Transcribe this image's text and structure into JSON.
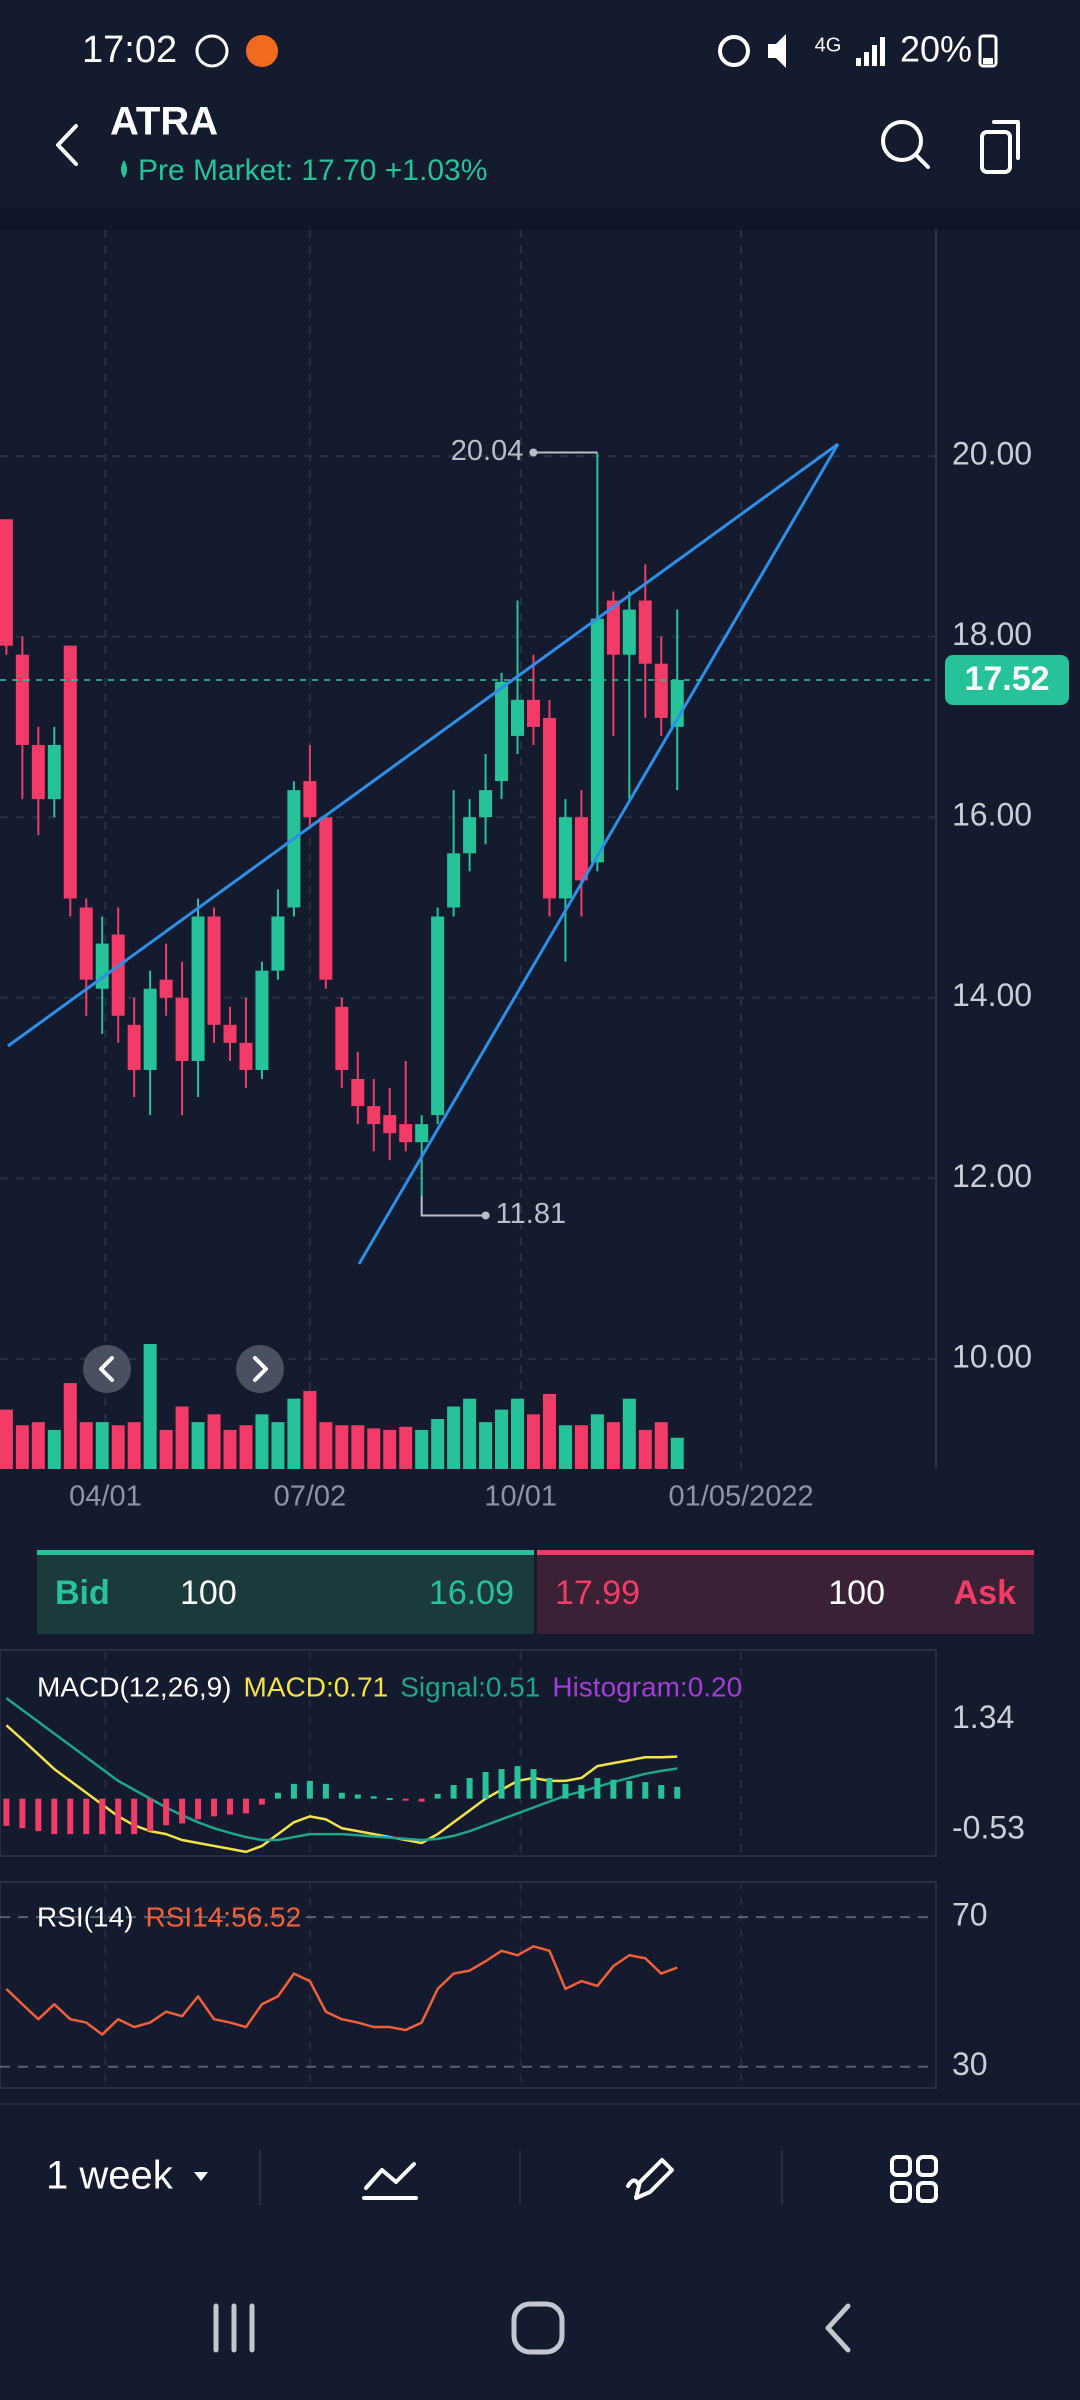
{
  "status_bar": {
    "time": "17:02",
    "network": "4G",
    "battery": "20%"
  },
  "header": {
    "symbol": "ATRA",
    "pre_market": "Pre Market: 17.70 +1.03%"
  },
  "quote": {
    "bid_label": "Bid",
    "bid_size": 100,
    "bid_price": 16.09,
    "ask_price": 17.99,
    "ask_size": 100,
    "ask_label": "Ask"
  },
  "toolbar": {
    "interval": "1 week"
  },
  "chart_data": [
    {
      "type": "candlestick",
      "xlim": [
        -0.4,
        58.2
      ],
      "xticks": [
        {
          "value": 6.2,
          "label": "04/01"
        },
        {
          "value": 19,
          "label": "07/02"
        },
        {
          "value": 32.2,
          "label": "10/01"
        },
        {
          "value": 46,
          "label": "01/05/2022"
        }
      ],
      "ylim": [
        8.78,
        22.46
      ],
      "yticks": [
        {
          "value": 10,
          "label": "10.00"
        },
        {
          "value": 12,
          "label": "12.00"
        },
        {
          "value": 14,
          "label": "14.00"
        },
        {
          "value": 16,
          "label": "16.00"
        },
        {
          "value": 18,
          "label": "18.00"
        },
        {
          "value": 20,
          "label": "20.00"
        }
      ],
      "grid": true,
      "up_color": "#26c29a",
      "down_color": "#f23b66",
      "open": [
        19.3,
        17.8,
        16.8,
        16.2,
        17.9,
        15.0,
        14.1,
        14.7,
        13.7,
        13.2,
        14.2,
        14.0,
        13.3,
        14.9,
        13.7,
        13.5,
        13.2,
        14.3,
        15.0,
        16.4,
        16.0,
        13.9,
        13.1,
        12.8,
        12.7,
        12.6,
        12.4,
        12.7,
        15.0,
        15.6,
        16.0,
        16.4,
        16.9,
        17.3,
        17.1,
        15.1,
        16.0,
        15.5,
        18.4,
        17.8,
        18.4,
        17.7,
        17.0
      ],
      "high": [
        19.3,
        18.0,
        17.0,
        17.0,
        17.9,
        15.1,
        14.9,
        15.0,
        14.0,
        14.3,
        14.6,
        14.4,
        15.1,
        15.0,
        13.9,
        14.0,
        14.4,
        15.2,
        16.4,
        16.8,
        16.0,
        14.0,
        13.4,
        13.1,
        13.0,
        13.3,
        12.7,
        15.0,
        16.3,
        16.2,
        16.7,
        17.6,
        18.4,
        17.8,
        17.3,
        16.2,
        16.3,
        20.04,
        18.5,
        18.5,
        18.8,
        18.0,
        18.3
      ],
      "low": [
        17.8,
        16.2,
        15.8,
        16.0,
        14.9,
        13.8,
        13.6,
        13.5,
        12.9,
        12.7,
        13.8,
        12.7,
        12.9,
        13.5,
        13.3,
        13.0,
        13.1,
        14.2,
        14.9,
        15.9,
        14.1,
        13.0,
        12.6,
        12.3,
        12.2,
        12.3,
        11.81,
        12.6,
        14.9,
        15.4,
        15.7,
        16.2,
        16.7,
        16.8,
        14.9,
        14.4,
        14.9,
        15.4,
        16.9,
        16.2,
        17.1,
        16.9,
        16.3
      ],
      "close": [
        17.9,
        16.8,
        16.2,
        16.8,
        15.1,
        14.2,
        14.6,
        13.8,
        13.2,
        14.1,
        14.0,
        13.3,
        14.9,
        13.7,
        13.5,
        13.2,
        14.3,
        14.9,
        16.3,
        16.0,
        14.2,
        13.2,
        12.8,
        12.6,
        12.5,
        12.4,
        12.6,
        14.9,
        15.6,
        16.0,
        16.3,
        17.5,
        17.3,
        17.0,
        15.1,
        16.0,
        15.3,
        18.2,
        17.8,
        18.3,
        17.7,
        17.1,
        17.52
      ],
      "volume": [
        38,
        28,
        30,
        25,
        55,
        30,
        30,
        28,
        30,
        80,
        25,
        40,
        30,
        35,
        25,
        28,
        35,
        30,
        45,
        50,
        30,
        28,
        28,
        26,
        25,
        27,
        25,
        32,
        40,
        45,
        30,
        38,
        45,
        35,
        48,
        28,
        28,
        35,
        30,
        45,
        25,
        30,
        20
      ],
      "last_price": 17.52,
      "high_marker": 20.04,
      "low_marker": 11.81
    },
    {
      "type": "macd",
      "title": "MACD(12,26,9)",
      "ylim": [
        -0.97,
        2.48
      ],
      "yticks": [
        1.34,
        -0.53
      ],
      "grid": false,
      "series": [
        {
          "name": "MACD:0.71",
          "color": "#f3e24a",
          "type": "line",
          "values": [
            1.24,
            1.0,
            0.75,
            0.5,
            0.3,
            0.1,
            -0.1,
            -0.3,
            -0.45,
            -0.55,
            -0.6,
            -0.7,
            -0.75,
            -0.8,
            -0.85,
            -0.9,
            -0.8,
            -0.6,
            -0.4,
            -0.3,
            -0.35,
            -0.5,
            -0.55,
            -0.6,
            -0.65,
            -0.7,
            -0.75,
            -0.6,
            -0.4,
            -0.2,
            0.0,
            0.15,
            0.3,
            0.35,
            0.3,
            0.3,
            0.35,
            0.55,
            0.6,
            0.65,
            0.7,
            0.7,
            0.71
          ]
        },
        {
          "name": "Signal:0.51",
          "color": "#1fa58a",
          "type": "line",
          "values": [
            1.7,
            1.5,
            1.3,
            1.1,
            0.9,
            0.7,
            0.5,
            0.3,
            0.15,
            0.0,
            -0.15,
            -0.28,
            -0.4,
            -0.5,
            -0.58,
            -0.65,
            -0.7,
            -0.7,
            -0.65,
            -0.6,
            -0.6,
            -0.6,
            -0.62,
            -0.64,
            -0.66,
            -0.68,
            -0.7,
            -0.68,
            -0.63,
            -0.55,
            -0.45,
            -0.35,
            -0.25,
            -0.15,
            -0.05,
            0.05,
            0.12,
            0.2,
            0.28,
            0.35,
            0.42,
            0.47,
            0.51
          ]
        },
        {
          "name": "Histogram:0.20",
          "color": "#a23ed6",
          "type": "bar",
          "up_color": "#26c29a",
          "down_color": "#f23b66",
          "values": [
            -0.46,
            -0.5,
            -0.55,
            -0.6,
            -0.6,
            -0.6,
            -0.6,
            -0.6,
            -0.6,
            -0.55,
            -0.45,
            -0.42,
            -0.35,
            -0.3,
            -0.27,
            -0.25,
            -0.1,
            0.1,
            0.25,
            0.3,
            0.25,
            0.1,
            0.07,
            0.04,
            0.01,
            -0.02,
            -0.05,
            0.08,
            0.23,
            0.35,
            0.45,
            0.5,
            0.55,
            0.5,
            0.35,
            0.25,
            0.23,
            0.35,
            0.32,
            0.3,
            0.28,
            0.23,
            0.2
          ]
        }
      ]
    },
    {
      "type": "rsi",
      "title": "RSI(14)",
      "ylim": [
        24.3,
        79.4
      ],
      "yticks": [
        70,
        30
      ],
      "grid": true,
      "series": [
        {
          "name": "RSI14:56.52",
          "color": "#f2603a",
          "type": "line",
          "values": [
            50.8,
            46.7,
            42.7,
            46.7,
            42.7,
            41.8,
            38.6,
            42.7,
            40.6,
            41.8,
            44.7,
            43.5,
            48.8,
            42.7,
            41.8,
            40.6,
            46.7,
            48.8,
            54.9,
            52.9,
            44.7,
            42.7,
            41.8,
            40.6,
            40.6,
            39.8,
            41.8,
            50.8,
            54.9,
            55.7,
            58.2,
            61.0,
            59.8,
            62.2,
            61.0,
            50.8,
            52.9,
            51.6,
            56.9,
            59.8,
            59.0,
            54.9,
            56.52
          ]
        }
      ]
    }
  ]
}
